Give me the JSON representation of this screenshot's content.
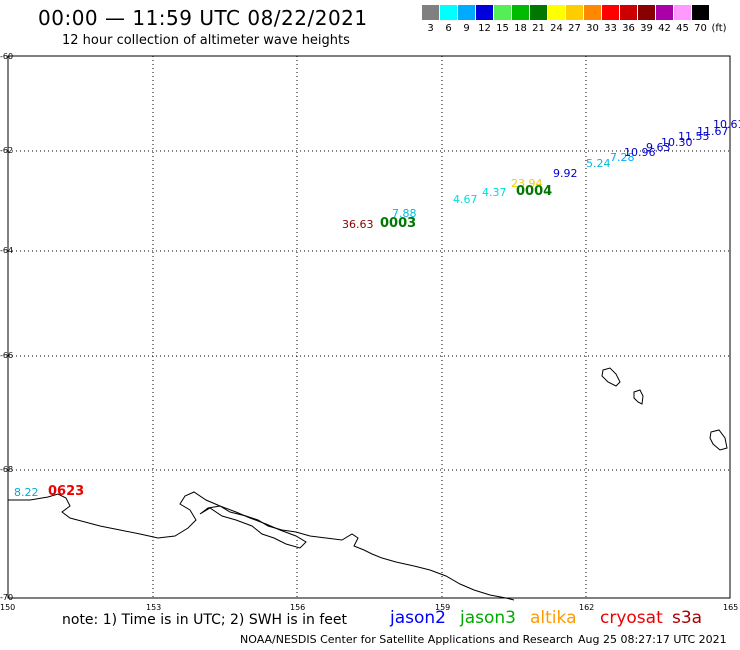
{
  "header": {
    "title": "00:00 — 11:59 UTC 08/22/2021",
    "subtitle": "12 hour collection of altimeter wave heights"
  },
  "legend": {
    "unit": "(ft)",
    "bins": [
      {
        "label": "3",
        "color": "#808080"
      },
      {
        "label": "6",
        "color": "#00ffff"
      },
      {
        "label": "9",
        "color": "#00aaff"
      },
      {
        "label": "12",
        "color": "#0000dd"
      },
      {
        "label": "15",
        "color": "#55ee55"
      },
      {
        "label": "18",
        "color": "#00bb00"
      },
      {
        "label": "21",
        "color": "#007700"
      },
      {
        "label": "24",
        "color": "#ffff00"
      },
      {
        "label": "27",
        "color": "#ffcc00"
      },
      {
        "label": "30",
        "color": "#ff8800"
      },
      {
        "label": "33",
        "color": "#ff0000"
      },
      {
        "label": "36",
        "color": "#cc0000"
      },
      {
        "label": "39",
        "color": "#880000"
      },
      {
        "label": "42",
        "color": "#aa00aa"
      },
      {
        "label": "45",
        "color": "#ff99ff"
      },
      {
        "label": "70",
        "color": "#000000"
      }
    ]
  },
  "map": {
    "lat_labels": [
      "-60",
      "-62",
      "-64",
      "-66",
      "-68",
      "-70"
    ],
    "lon_labels": [
      "150",
      "153",
      "156",
      "159",
      "162",
      "165"
    ],
    "observations": [
      {
        "text": "36.63",
        "color": "#880000"
      },
      {
        "text": "7.88",
        "color": "#00bbdd"
      },
      {
        "text": "4.67",
        "color": "#00dddd"
      },
      {
        "text": "4.37",
        "color": "#00dddd"
      },
      {
        "text": "23.94",
        "color": "#eecc00"
      },
      {
        "text": "9.92",
        "color": "#0000cc"
      },
      {
        "text": "5.24",
        "color": "#00bbdd"
      },
      {
        "text": "7.28",
        "color": "#00aaff"
      },
      {
        "text": "10.96",
        "color": "#0000cc"
      },
      {
        "text": "9.63",
        "color": "#0000cc"
      },
      {
        "text": "10.30",
        "color": "#0000cc"
      },
      {
        "text": "11.55",
        "color": "#0000cc"
      },
      {
        "text": "11.67",
        "color": "#0000cc"
      },
      {
        "text": "10.61",
        "color": "#0000cc"
      },
      {
        "text": "8.22",
        "color": "#00aadd"
      }
    ],
    "time_labels": [
      {
        "text": "0003",
        "color": "#007700"
      },
      {
        "text": "0004",
        "color": "#007700"
      },
      {
        "text": "0623",
        "color": "#ee0000"
      }
    ]
  },
  "footer": {
    "note": "note:  1) Time is in UTC;  2) SWH is in feet",
    "satellites": [
      {
        "name": "jason2",
        "color": "#0000ff"
      },
      {
        "name": "jason3",
        "color": "#00aa00"
      },
      {
        "name": "altika",
        "color": "#ff9900"
      },
      {
        "name": "cryosat",
        "color": "#ee0000"
      },
      {
        "name": "s3a",
        "color": "#aa0000"
      }
    ],
    "credit": "NOAA/NESDIS Center for Satellite Applications and Research",
    "timestamp": "Aug 25 08:27:17 UTC 2021"
  }
}
